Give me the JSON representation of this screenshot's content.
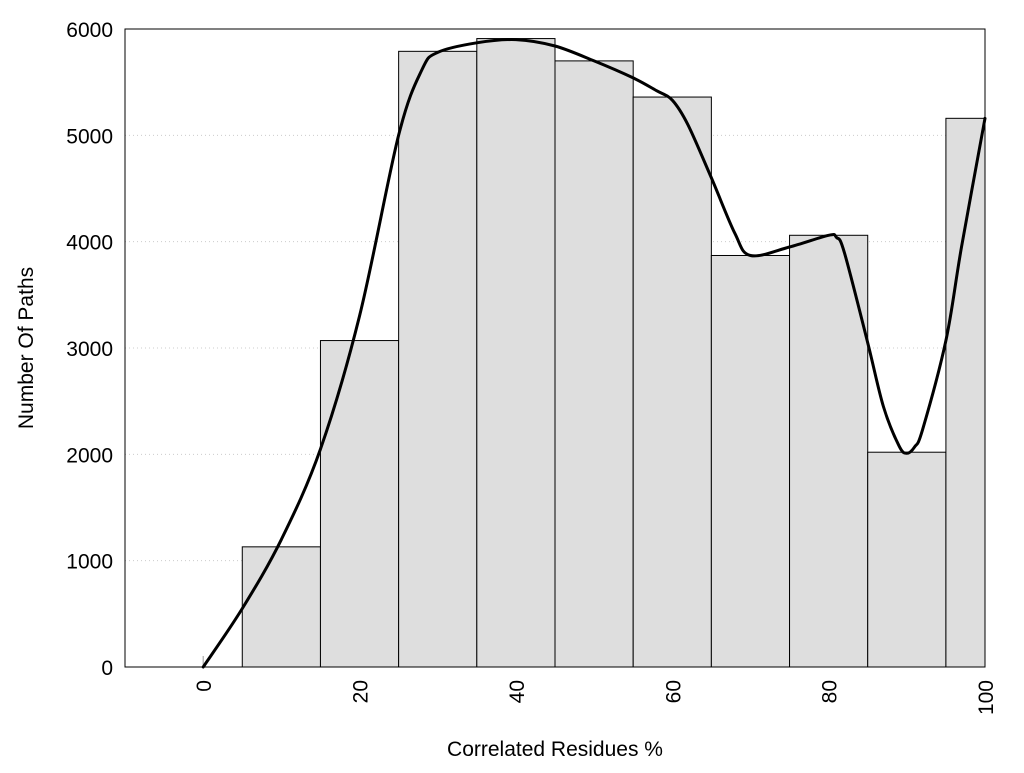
{
  "chart_data": {
    "type": "bar",
    "title": "",
    "xlabel": "Correlated Residues %",
    "ylabel": "Number Of Paths",
    "xlim": [
      -10,
      100
    ],
    "ylim": [
      0,
      6000
    ],
    "x_ticks": [
      0,
      20,
      40,
      60,
      80,
      100
    ],
    "y_ticks": [
      0,
      1000,
      2000,
      3000,
      4000,
      5000,
      6000
    ],
    "grid": "horizontal dotted",
    "legend": "none",
    "bars": {
      "centers": [
        0,
        10,
        20,
        30,
        40,
        50,
        60,
        70,
        80,
        90,
        100
      ],
      "width": 10,
      "values": [
        0,
        1130,
        3070,
        5790,
        5910,
        5700,
        5360,
        3870,
        4060,
        2020,
        5160
      ]
    },
    "smooth_curve": {
      "x": [
        0,
        5,
        10,
        15,
        20,
        25,
        28,
        30,
        35,
        40,
        45,
        50,
        55,
        58,
        60,
        62,
        65,
        68,
        70,
        75,
        80,
        81,
        82,
        85,
        87,
        89,
        90,
        91,
        92,
        95,
        97,
        100
      ],
      "y": [
        0,
        550,
        1200,
        2050,
        3300,
        5000,
        5620,
        5780,
        5870,
        5900,
        5840,
        5700,
        5540,
        5420,
        5330,
        5100,
        4600,
        4080,
        3870,
        3950,
        4060,
        4040,
        3900,
        3050,
        2450,
        2080,
        2010,
        2070,
        2230,
        3070,
        3950,
        5160
      ]
    },
    "colors": {
      "bar_fill": "#dedede",
      "bar_stroke": "#000000",
      "curve": "#000000",
      "grid": "#cccccc"
    }
  }
}
